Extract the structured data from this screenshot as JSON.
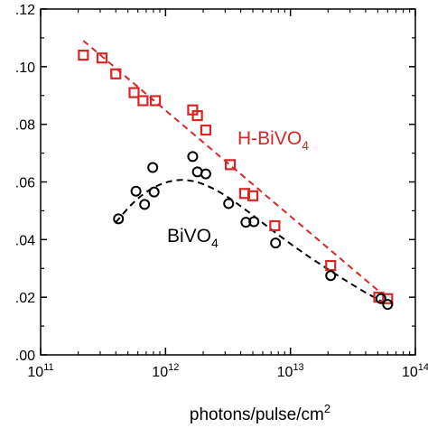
{
  "chart_data": {
    "type": "scatter",
    "title": "",
    "xlabel": "photons/pulse/cm",
    "xlabel_superscript": "2",
    "ylabel": "",
    "x_scale": "log",
    "xlim": [
      100000000000.0,
      100000000000000.0
    ],
    "ylim": [
      0.0,
      0.12
    ],
    "grid": false,
    "legend": "none",
    "x_ticks": [
      {
        "value": 100000000000.0,
        "base": "10",
        "exp": "11"
      },
      {
        "value": 1000000000000.0,
        "base": "10",
        "exp": "12"
      },
      {
        "value": 10000000000000.0,
        "base": "10",
        "exp": "13"
      },
      {
        "value": 100000000000000.0,
        "base": "10",
        "exp": "14"
      }
    ],
    "y_ticks": [
      {
        "value": 0.0,
        "label": ".00"
      },
      {
        "value": 0.02,
        "label": ".02"
      },
      {
        "value": 0.04,
        "label": ".04"
      },
      {
        "value": 0.06,
        "label": ".06"
      },
      {
        "value": 0.08,
        "label": ".08"
      },
      {
        "value": 0.1,
        "label": ".10"
      },
      {
        "value": 0.12,
        "label": ".12"
      }
    ],
    "series": [
      {
        "name": "H-BiVO",
        "name_subscript": "4",
        "color": "#d62728",
        "marker": "square",
        "points": [
          [
            220000000000.0,
            0.104
          ],
          [
            310000000000.0,
            0.103
          ],
          [
            400000000000.0,
            0.0975
          ],
          [
            560000000000.0,
            0.091
          ],
          [
            660000000000.0,
            0.0882
          ],
          [
            830000000000.0,
            0.0882
          ],
          [
            1650000000000.0,
            0.085
          ],
          [
            1800000000000.0,
            0.083
          ],
          [
            2100000000000.0,
            0.078
          ],
          [
            3300000000000.0,
            0.066
          ],
          [
            4300000000000.0,
            0.056
          ],
          [
            5000000000000.0,
            0.0552
          ],
          [
            7500000000000.0,
            0.0448
          ],
          [
            21000000000000.0,
            0.031
          ],
          [
            51000000000000.0,
            0.02
          ],
          [
            60000000000000.0,
            0.0195
          ]
        ],
        "fit": [
          [
            220000000000.0,
            0.109
          ],
          [
            60000000000000.0,
            0.0195
          ]
        ]
      },
      {
        "name": "BiVO",
        "name_subscript": "4",
        "color": "#000000",
        "marker": "circle",
        "points": [
          [
            420000000000.0,
            0.0472
          ],
          [
            580000000000.0,
            0.0568
          ],
          [
            680000000000.0,
            0.0522
          ],
          [
            790000000000.0,
            0.065
          ],
          [
            810000000000.0,
            0.0565
          ],
          [
            1650000000000.0,
            0.0688
          ],
          [
            1800000000000.0,
            0.0635
          ],
          [
            2100000000000.0,
            0.0628
          ],
          [
            3200000000000.0,
            0.0525
          ],
          [
            4400000000000.0,
            0.046
          ],
          [
            5100000000000.0,
            0.0462
          ],
          [
            7600000000000.0,
            0.0388
          ],
          [
            21000000000000.0,
            0.0275
          ],
          [
            53000000000000.0,
            0.0195
          ],
          [
            60000000000000.0,
            0.0175
          ]
        ],
        "fit": [
          [
            400000000000.0,
            0.046
          ],
          [
            550000000000.0,
            0.053
          ],
          [
            750000000000.0,
            0.0575
          ],
          [
            1000000000000.0,
            0.06
          ],
          [
            1400000000000.0,
            0.061
          ],
          [
            2000000000000.0,
            0.0595
          ],
          [
            3000000000000.0,
            0.0555
          ],
          [
            4500000000000.0,
            0.05
          ],
          [
            7000000000000.0,
            0.0435
          ],
          [
            12000000000000.0,
            0.036
          ],
          [
            22000000000000.0,
            0.0285
          ],
          [
            40000000000000.0,
            0.0215
          ],
          [
            60000000000000.0,
            0.0175
          ]
        ]
      }
    ]
  }
}
